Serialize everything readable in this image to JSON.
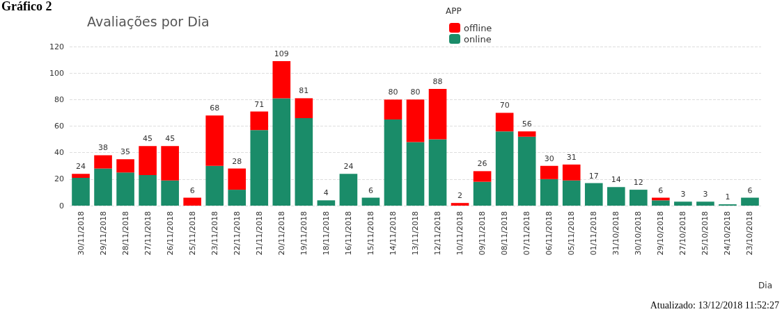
{
  "chart_data": {
    "type": "bar",
    "title": "Avaliações por Dia",
    "xlabel": "Dia",
    "legend_title": "APP",
    "annotations": [
      "Gráfico 2",
      "Atualizado: 13/12/2018 11:52:27"
    ],
    "categories": [
      "30/11/2018",
      "29/11/2018",
      "28/11/2018",
      "27/11/2018",
      "26/11/2018",
      "25/11/2018",
      "23/11/2018",
      "22/11/2018",
      "21/11/2018",
      "20/11/2018",
      "19/11/2018",
      "18/11/2018",
      "16/11/2018",
      "15/11/2018",
      "14/11/2018",
      "13/11/2018",
      "12/11/2018",
      "10/11/2018",
      "09/11/2018",
      "08/11/2018",
      "07/11/2018",
      "06/11/2018",
      "05/11/2018",
      "01/11/2018",
      "31/10/2018",
      "30/10/2018",
      "29/10/2018",
      "27/10/2018",
      "25/10/2018",
      "24/10/2018",
      "23/10/2018"
    ],
    "stacked": true,
    "series": [
      {
        "name": "online",
        "color": "#1a8c69",
        "values": [
          21,
          28,
          25,
          23,
          19,
          0,
          30,
          12,
          57,
          81,
          66,
          4,
          24,
          6,
          65,
          48,
          50,
          0,
          18,
          56,
          52,
          20,
          19,
          17,
          14,
          12,
          4,
          3,
          3,
          1,
          6
        ]
      },
      {
        "name": "offline",
        "color": "#ff0000",
        "values": [
          3,
          10,
          10,
          22,
          26,
          6,
          38,
          16,
          14,
          28,
          15,
          0,
          0,
          0,
          15,
          32,
          38,
          2,
          8,
          14,
          4,
          10,
          12,
          0,
          0,
          0,
          2,
          0,
          0,
          0,
          0
        ]
      }
    ],
    "totals": [
      "24",
      "38",
      "35",
      "45",
      "45",
      "6",
      "68",
      "28",
      "71",
      "109",
      "81",
      "4",
      "24",
      "6",
      "80",
      "80",
      "88",
      "2",
      "26",
      "70",
      "56",
      "30",
      "31",
      "17",
      "14",
      "12",
      "6",
      "3",
      "3",
      "1",
      "6"
    ],
    "ylim": [
      0,
      120
    ],
    "yticks": [
      0,
      20,
      40,
      60,
      80,
      100,
      120
    ],
    "grid": "y",
    "legend": "top"
  }
}
